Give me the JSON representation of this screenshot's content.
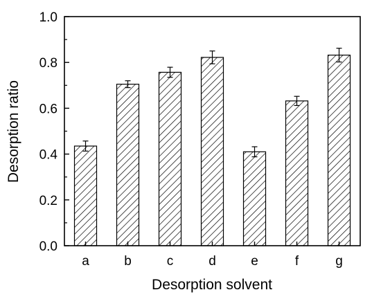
{
  "chart_data": {
    "type": "bar",
    "title": "",
    "xlabel": "Desorption solvent",
    "ylabel": "Desorption ratio",
    "categories": [
      "a",
      "b",
      "c",
      "d",
      "e",
      "f",
      "g"
    ],
    "values": [
      0.435,
      0.705,
      0.757,
      0.822,
      0.41,
      0.632,
      0.832
    ],
    "errors": [
      0.022,
      0.015,
      0.022,
      0.028,
      0.022,
      0.02,
      0.03
    ],
    "ylim": [
      0,
      1.0
    ],
    "yticks": [
      0.0,
      0.2,
      0.4,
      0.6,
      0.8,
      1.0
    ],
    "ytick_labels": [
      "0.0",
      "0.2",
      "0.4",
      "0.6",
      "0.8",
      "1.0"
    ],
    "grid": false,
    "bar_fill": "hatched",
    "colors": {
      "bar_stroke": "#000000",
      "hatch": "#000000",
      "background": "#ffffff"
    }
  }
}
